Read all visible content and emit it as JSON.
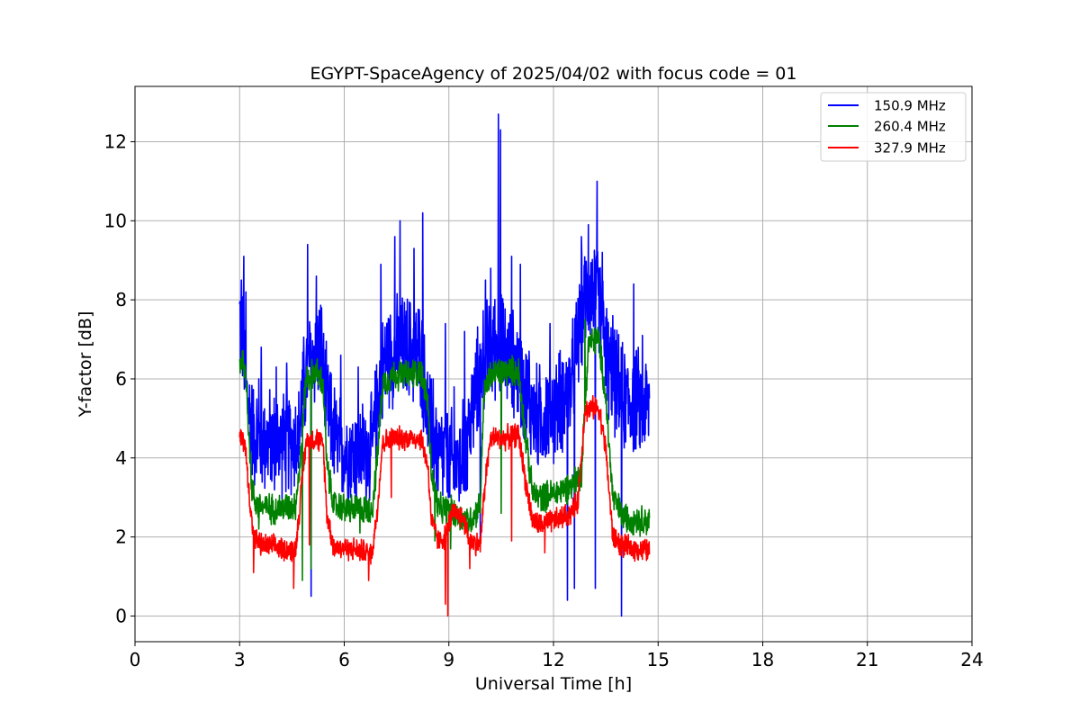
{
  "chart_data": {
    "type": "line",
    "title": "EGYPT-SpaceAgency of 2025/04/02 with focus code = 01",
    "xlabel": "Universal Time [h]",
    "ylabel": "Y-factor [dB]",
    "xlim": [
      0,
      24
    ],
    "ylim": [
      -0.65,
      13.4
    ],
    "xticks": [
      0,
      3,
      6,
      9,
      12,
      15,
      18,
      21,
      24
    ],
    "xtick_labels": [
      "0",
      "3",
      "6",
      "9",
      "12",
      "15",
      "18",
      "21",
      "24"
    ],
    "yticks": [
      0,
      2,
      4,
      6,
      8,
      10,
      12
    ],
    "ytick_labels": [
      "0",
      "2",
      "4",
      "6",
      "8",
      "10",
      "12"
    ],
    "grid": true,
    "legend_position": "top-right",
    "series": [
      {
        "name": "150.9 MHz",
        "color": "#0000ff",
        "noise_scale": 1.6,
        "x": [
          3.0,
          3.1,
          3.2,
          3.4,
          3.8,
          4.3,
          4.7,
          4.8,
          5.0,
          5.3,
          5.5,
          5.8,
          6.3,
          6.8,
          7.0,
          7.2,
          7.5,
          7.8,
          8.2,
          8.4,
          8.7,
          9.0,
          9.3,
          9.5,
          9.8,
          10.0,
          10.2,
          10.4,
          10.6,
          10.9,
          11.2,
          11.5,
          12.0,
          12.5,
          12.8,
          13.0,
          13.3,
          13.6,
          14.0,
          14.4,
          14.75
        ],
        "y": [
          7.6,
          6.8,
          5.6,
          4.6,
          4.4,
          4.4,
          4.5,
          5.6,
          6.4,
          6.8,
          5.3,
          4.3,
          4.1,
          4.2,
          5.8,
          6.6,
          6.7,
          6.8,
          6.6,
          5.0,
          4.1,
          3.9,
          3.8,
          4.3,
          5.8,
          6.6,
          6.7,
          7.0,
          6.6,
          6.4,
          5.6,
          5.0,
          5.2,
          5.8,
          7.6,
          8.3,
          8.1,
          6.2,
          5.5,
          5.4,
          5.3
        ]
      },
      {
        "name": "260.4 MHz",
        "color": "#008000",
        "noise_scale": 0.45,
        "x": [
          3.0,
          3.1,
          3.2,
          3.35,
          3.5,
          4.0,
          4.6,
          4.75,
          4.9,
          5.2,
          5.4,
          5.5,
          5.7,
          6.2,
          6.8,
          6.95,
          7.1,
          7.4,
          7.8,
          8.2,
          8.4,
          8.5,
          8.7,
          9.0,
          9.3,
          9.6,
          9.9,
          10.0,
          10.2,
          10.6,
          11.0,
          11.2,
          11.4,
          11.6,
          12.0,
          12.5,
          12.8,
          13.0,
          13.3,
          13.5,
          13.7,
          14.0,
          14.75
        ],
        "y": [
          6.4,
          6.5,
          5.8,
          3.2,
          2.8,
          2.7,
          2.8,
          4.0,
          6.0,
          6.2,
          5.8,
          3.8,
          2.8,
          2.7,
          2.7,
          4.0,
          5.9,
          6.1,
          6.1,
          6.2,
          5.4,
          3.6,
          2.7,
          2.7,
          2.5,
          2.4,
          2.8,
          5.6,
          6.1,
          6.2,
          6.2,
          4.5,
          3.1,
          3.0,
          3.1,
          3.3,
          3.6,
          6.9,
          7.0,
          5.5,
          3.0,
          2.5,
          2.4
        ]
      },
      {
        "name": "327.9 MHz",
        "color": "#ff0000",
        "noise_scale": 0.35,
        "x": [
          3.0,
          3.15,
          3.25,
          3.4,
          3.6,
          4.0,
          4.6,
          4.75,
          4.9,
          5.2,
          5.4,
          5.5,
          5.7,
          6.2,
          6.8,
          6.95,
          7.1,
          7.4,
          7.8,
          8.2,
          8.4,
          8.5,
          8.7,
          8.9,
          9.1,
          9.4,
          9.6,
          9.9,
          10.05,
          10.2,
          10.6,
          11.0,
          11.2,
          11.4,
          11.6,
          12.0,
          12.5,
          12.7,
          12.9,
          13.3,
          13.5,
          13.7,
          14.0,
          14.75
        ],
        "y": [
          4.5,
          4.4,
          3.3,
          2.0,
          1.8,
          1.75,
          1.65,
          3.0,
          4.4,
          4.5,
          4.3,
          2.6,
          1.75,
          1.7,
          1.6,
          2.7,
          4.4,
          4.5,
          4.5,
          4.5,
          3.8,
          2.4,
          1.9,
          2.0,
          2.6,
          2.5,
          1.9,
          1.8,
          3.5,
          4.5,
          4.5,
          4.6,
          3.4,
          2.4,
          2.3,
          2.4,
          2.6,
          2.9,
          5.2,
          5.3,
          4.2,
          2.0,
          1.75,
          1.65
        ]
      }
    ],
    "spikes": [
      {
        "series": 0,
        "x": 3.05,
        "y": 8.5
      },
      {
        "series": 0,
        "x": 3.12,
        "y": 9.1
      },
      {
        "series": 0,
        "x": 3.18,
        "y": 8.2
      },
      {
        "series": 0,
        "x": 3.55,
        "y": 6.0
      },
      {
        "series": 0,
        "x": 3.62,
        "y": 6.8
      },
      {
        "series": 0,
        "x": 4.05,
        "y": 6.3
      },
      {
        "series": 0,
        "x": 4.35,
        "y": 6.4
      },
      {
        "series": 0,
        "x": 4.95,
        "y": 9.4
      },
      {
        "series": 0,
        "x": 5.05,
        "y": 0.5
      },
      {
        "series": 0,
        "x": 5.2,
        "y": 8.6
      },
      {
        "series": 0,
        "x": 5.35,
        "y": 7.8
      },
      {
        "series": 0,
        "x": 5.9,
        "y": 6.6
      },
      {
        "series": 0,
        "x": 6.4,
        "y": 6.3
      },
      {
        "series": 0,
        "x": 7.05,
        "y": 8.9
      },
      {
        "series": 0,
        "x": 7.45,
        "y": 9.6
      },
      {
        "series": 0,
        "x": 7.6,
        "y": 10.0
      },
      {
        "series": 0,
        "x": 8.0,
        "y": 9.3
      },
      {
        "series": 0,
        "x": 8.25,
        "y": 10.2
      },
      {
        "series": 0,
        "x": 8.55,
        "y": 6.0
      },
      {
        "series": 0,
        "x": 8.9,
        "y": 7.4
      },
      {
        "series": 0,
        "x": 9.15,
        "y": 5.8
      },
      {
        "series": 0,
        "x": 9.45,
        "y": 7.2
      },
      {
        "series": 0,
        "x": 9.9,
        "y": 2.0
      },
      {
        "series": 0,
        "x": 10.05,
        "y": 8.5
      },
      {
        "series": 0,
        "x": 10.2,
        "y": 8.8
      },
      {
        "series": 0,
        "x": 10.42,
        "y": 12.7
      },
      {
        "series": 0,
        "x": 10.48,
        "y": 12.3
      },
      {
        "series": 0,
        "x": 10.8,
        "y": 9.1
      },
      {
        "series": 0,
        "x": 11.05,
        "y": 8.9
      },
      {
        "series": 0,
        "x": 11.3,
        "y": 6.7
      },
      {
        "series": 0,
        "x": 11.9,
        "y": 7.4
      },
      {
        "series": 0,
        "x": 12.4,
        "y": 0.4
      },
      {
        "series": 0,
        "x": 12.6,
        "y": 0.7
      },
      {
        "series": 0,
        "x": 12.8,
        "y": 9.6
      },
      {
        "series": 0,
        "x": 13.0,
        "y": 9.9
      },
      {
        "series": 0,
        "x": 13.2,
        "y": 0.7
      },
      {
        "series": 0,
        "x": 13.25,
        "y": 11.0
      },
      {
        "series": 0,
        "x": 13.4,
        "y": 9.2
      },
      {
        "series": 0,
        "x": 13.7,
        "y": 7.6
      },
      {
        "series": 0,
        "x": 13.95,
        "y": 0.0
      },
      {
        "series": 0,
        "x": 14.3,
        "y": 8.4
      },
      {
        "series": 0,
        "x": 14.55,
        "y": 7.1
      },
      {
        "series": 1,
        "x": 3.55,
        "y": 2.2
      },
      {
        "series": 1,
        "x": 4.8,
        "y": 0.9
      },
      {
        "series": 1,
        "x": 5.05,
        "y": 1.2
      },
      {
        "series": 1,
        "x": 6.45,
        "y": 2.1
      },
      {
        "series": 1,
        "x": 8.6,
        "y": 1.9
      },
      {
        "series": 1,
        "x": 9.05,
        "y": 1.7
      },
      {
        "series": 1,
        "x": 10.5,
        "y": 2.6
      },
      {
        "series": 1,
        "x": 12.9,
        "y": 7.5
      },
      {
        "series": 2,
        "x": 3.4,
        "y": 1.1
      },
      {
        "series": 2,
        "x": 4.55,
        "y": 0.7
      },
      {
        "series": 2,
        "x": 5.0,
        "y": 1.8
      },
      {
        "series": 2,
        "x": 6.7,
        "y": 0.9
      },
      {
        "series": 2,
        "x": 7.35,
        "y": 3.0
      },
      {
        "series": 2,
        "x": 8.9,
        "y": 0.3
      },
      {
        "series": 2,
        "x": 8.97,
        "y": 0.0
      },
      {
        "series": 2,
        "x": 9.6,
        "y": 1.2
      },
      {
        "series": 2,
        "x": 10.8,
        "y": 1.9
      },
      {
        "series": 2,
        "x": 11.75,
        "y": 1.6
      }
    ]
  }
}
